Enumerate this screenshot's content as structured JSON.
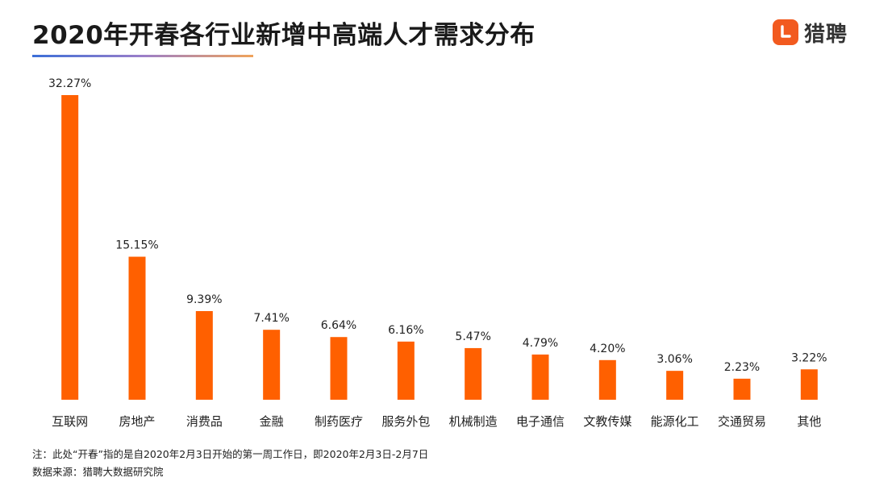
{
  "title": "2020年开春各行业新增中高端人才需求分布",
  "logo": {
    "text": "猎聘",
    "icon": "liepin-logo-icon",
    "color": "#f25a1f"
  },
  "bar_color": "#ff6000",
  "notes": {
    "note": "注：此处“开春”指的是自2020年2月3日开始的第一周工作日，即2020年2月3日-2月7日",
    "source": "数据来源：猎聘大数据研究院"
  },
  "chart_data": {
    "type": "bar",
    "title": "2020年开春各行业新增中高端人才需求分布",
    "xlabel": "",
    "ylabel": "",
    "categories": [
      "互联网",
      "房地产",
      "消费品",
      "金融",
      "制药医疗",
      "服务外包",
      "机械制造",
      "电子通信",
      "文教传媒",
      "能源化工",
      "交通贸易",
      "其他"
    ],
    "values": [
      32.27,
      15.15,
      9.39,
      7.41,
      6.64,
      6.16,
      5.47,
      4.79,
      4.2,
      3.06,
      2.23,
      3.22
    ],
    "value_labels": [
      "32.27%",
      "15.15%",
      "9.39%",
      "7.41%",
      "6.64%",
      "6.16%",
      "5.47%",
      "4.79%",
      "4.20%",
      "3.06%",
      "2.23%",
      "3.22%"
    ],
    "unit": "%",
    "grid": false,
    "legend": "none"
  }
}
